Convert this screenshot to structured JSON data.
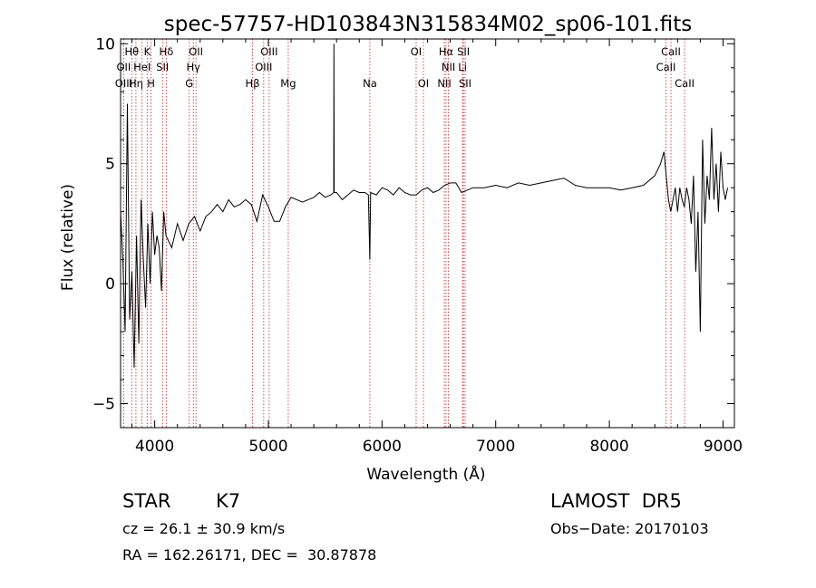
{
  "chart_data": {
    "type": "line",
    "title": "spec-57757-HD103843N315834M02_sp06-101.fits",
    "xlabel": "Wavelength (Å)",
    "ylabel": "Flux (relative)",
    "xlim": [
      3700,
      9100
    ],
    "ylim": [
      -6,
      10.2
    ],
    "xticks": [
      4000,
      5000,
      6000,
      7000,
      8000,
      9000
    ],
    "xtick_labels": [
      "4000",
      "5000",
      "6000",
      "7000",
      "8000",
      "9000"
    ],
    "yticks": [
      -5,
      0,
      5,
      10
    ],
    "ytick_labels": [
      "−5",
      "0",
      "5",
      "10"
    ],
    "grid": false,
    "line_color": "#000000",
    "marker_color": "#cc2222",
    "spectral_lines": [
      {
        "label": "Hθ",
        "wavelength": 3798,
        "row": 0
      },
      {
        "label": "K",
        "wavelength": 3934,
        "row": 0
      },
      {
        "label": "Hδ",
        "wavelength": 4102,
        "row": 0
      },
      {
        "label": "OII",
        "wavelength": 4363,
        "row": 0
      },
      {
        "label": "OIII",
        "wavelength": 5007,
        "row": 0
      },
      {
        "label": "OI",
        "wavelength": 6300,
        "row": 0
      },
      {
        "label": "Hα",
        "wavelength": 6563,
        "row": 0
      },
      {
        "label": "SII",
        "wavelength": 6716,
        "row": 0
      },
      {
        "label": "CaII",
        "wavelength": 8542,
        "row": 0
      },
      {
        "label": "OII",
        "wavelength": 3727,
        "row": 1
      },
      {
        "label": "HeI",
        "wavelength": 3889,
        "row": 1
      },
      {
        "label": "SII",
        "wavelength": 4069,
        "row": 1
      },
      {
        "label": "Hγ",
        "wavelength": 4340,
        "row": 1
      },
      {
        "label": "OIII",
        "wavelength": 4959,
        "row": 1
      },
      {
        "label": "NII",
        "wavelength": 6584,
        "row": 1
      },
      {
        "label": "Li",
        "wavelength": 6708,
        "row": 1
      },
      {
        "label": "CaII",
        "wavelength": 8498,
        "row": 1
      },
      {
        "label": "OIII",
        "wavelength": 3727,
        "row": 2
      },
      {
        "label": "Hη",
        "wavelength": 3835,
        "row": 2
      },
      {
        "label": "H",
        "wavelength": 3968,
        "row": 2
      },
      {
        "label": "G",
        "wavelength": 4304,
        "row": 2
      },
      {
        "label": "Hβ",
        "wavelength": 4861,
        "row": 2
      },
      {
        "label": "Mg",
        "wavelength": 5175,
        "row": 2
      },
      {
        "label": "Na",
        "wavelength": 5893,
        "row": 2
      },
      {
        "label": "OI",
        "wavelength": 6364,
        "row": 2
      },
      {
        "label": "NII",
        "wavelength": 6548,
        "row": 2
      },
      {
        "label": "SII",
        "wavelength": 6731,
        "row": 2
      },
      {
        "label": "CaII",
        "wavelength": 8662,
        "row": 2
      }
    ],
    "series": [
      {
        "x": [
          3700,
          3720,
          3740,
          3760,
          3780,
          3800,
          3820,
          3840,
          3860,
          3880,
          3900,
          3920,
          3940,
          3960,
          3980,
          4000,
          4020,
          4040,
          4060,
          4080,
          4100,
          4150,
          4200,
          4250,
          4300,
          4350,
          4400,
          4450,
          4500,
          4550,
          4600,
          4650,
          4700,
          4750,
          4800,
          4850,
          4900,
          4950,
          5000,
          5050,
          5100,
          5150,
          5200,
          5250,
          5300,
          5350,
          5400,
          5450,
          5500,
          5550,
          5575,
          5577,
          5579,
          5600,
          5650,
          5700,
          5750,
          5800,
          5850,
          5880,
          5893,
          5900,
          5950,
          6000,
          6050,
          6100,
          6150,
          6200,
          6250,
          6300,
          6350,
          6400,
          6450,
          6500,
          6550,
          6600,
          6650,
          6700,
          6750,
          6800,
          6900,
          7000,
          7100,
          7200,
          7300,
          7400,
          7500,
          7600,
          7700,
          7800,
          7900,
          8000,
          8100,
          8200,
          8300,
          8400,
          8450,
          8480,
          8500,
          8520,
          8540,
          8560,
          8580,
          8600,
          8620,
          8640,
          8660,
          8680,
          8700,
          8720,
          8740,
          8760,
          8780,
          8800,
          8820,
          8840,
          8860,
          8880,
          8900,
          8920,
          8940,
          8960,
          8980,
          9000,
          9020,
          9040
        ],
        "y": [
          3.0,
          1.0,
          -2.0,
          7.5,
          -1.5,
          0.5,
          -3.5,
          2.0,
          -2.5,
          3.5,
          1.0,
          -1.0,
          2.5,
          0.0,
          3.0,
          1.2,
          2.0,
          1.5,
          -0.3,
          3.0,
          2.0,
          1.5,
          2.5,
          1.8,
          2.5,
          2.8,
          2.2,
          2.8,
          3.0,
          3.3,
          3.0,
          3.5,
          3.2,
          3.3,
          3.5,
          3.3,
          2.6,
          3.7,
          3.2,
          2.6,
          2.6,
          3.2,
          3.6,
          3.5,
          3.4,
          3.5,
          3.6,
          3.8,
          3.6,
          3.7,
          3.8,
          10.0,
          3.8,
          3.8,
          3.5,
          3.7,
          3.9,
          3.8,
          3.8,
          3.7,
          1.0,
          3.8,
          3.7,
          4.0,
          3.9,
          3.7,
          4.0,
          3.8,
          3.7,
          3.7,
          3.9,
          4.0,
          3.8,
          3.9,
          4.1,
          4.2,
          4.2,
          3.8,
          3.9,
          4.0,
          4.0,
          4.1,
          4.0,
          4.2,
          4.1,
          4.2,
          4.3,
          4.4,
          4.1,
          4.0,
          4.0,
          4.0,
          3.9,
          4.0,
          4.1,
          4.5,
          5.0,
          5.5,
          4.5,
          3.5,
          3.0,
          3.5,
          4.0,
          3.0,
          4.0,
          3.5,
          3.2,
          4.0,
          3.5,
          2.5,
          4.5,
          0.5,
          3.0,
          -2.0,
          6.0,
          2.5,
          4.5,
          3.5,
          6.5,
          3.5,
          5.0,
          3.0,
          5.5,
          4.0,
          3.5,
          4.0
        ]
      }
    ]
  },
  "footer": {
    "object_class": "STAR",
    "subclass": "K7",
    "cz_text": "cz = 26.1 ± 30.9 km/s",
    "coords_text": "RA = 162.26171, DEC =  30.87878",
    "survey": "LAMOST  DR5",
    "obs_date": "Obs−Date: 20170103"
  }
}
